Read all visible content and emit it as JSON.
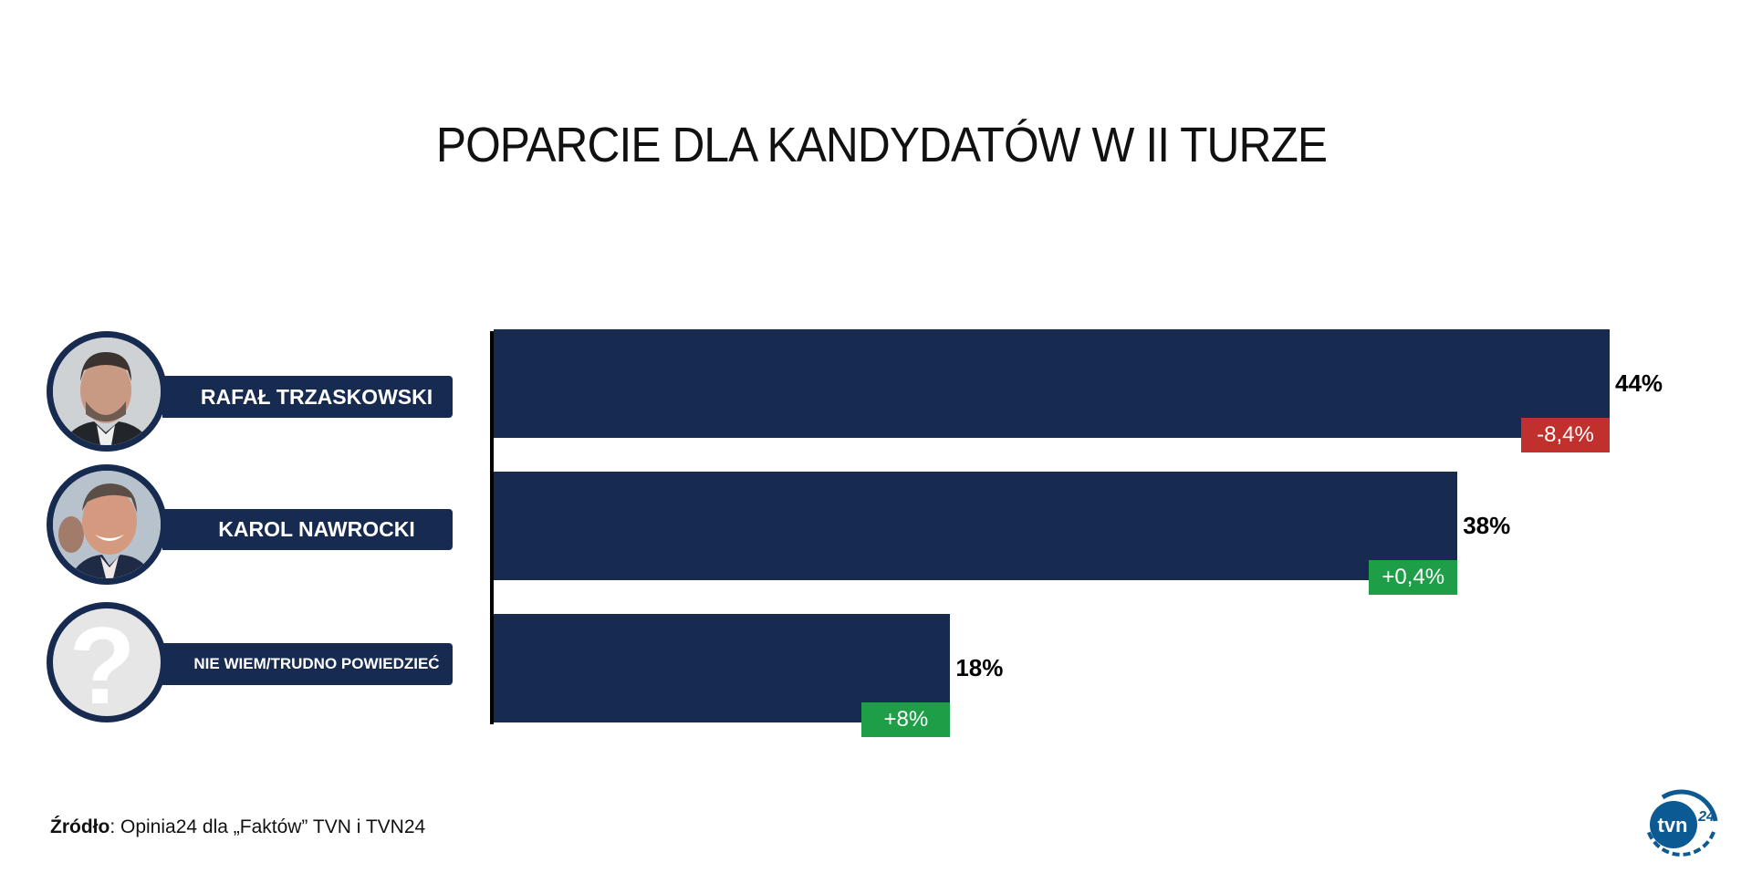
{
  "chart_data": {
    "type": "bar",
    "orientation": "horizontal",
    "title": "POPARCIE DLA KANDYDATÓW W II TURZE",
    "categories": [
      "RAFAŁ TRZASKOWSKI",
      "KAROL NAWROCKI",
      "NIE WIEM/TRUDNO POWIEDZIEĆ"
    ],
    "values": [
      44,
      38,
      18
    ],
    "value_labels": [
      "44%",
      "38%",
      "18%"
    ],
    "changes": [
      -8.4,
      0.4,
      8
    ],
    "change_labels": [
      "-8,4%",
      "+0,4%",
      "+8%"
    ],
    "xlim": [
      0,
      44
    ],
    "grid": false,
    "colors": {
      "bar": "#172a50",
      "negative": "#c0302c",
      "positive": "#1f9e48"
    }
  },
  "avatars": [
    "photo-trzaskowski",
    "photo-nawrocki",
    "question-mark-icon"
  ],
  "source": {
    "label": "Źródło",
    "text": ": Opinia24 dla „Faktów” TVN i TVN24"
  },
  "logo": {
    "text": "tvn24",
    "color": "#0b5a94"
  }
}
